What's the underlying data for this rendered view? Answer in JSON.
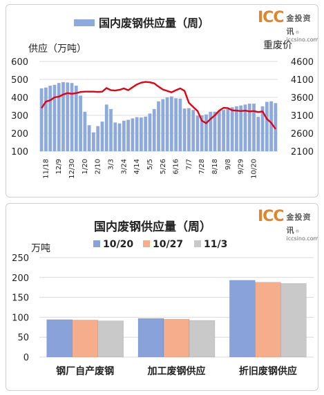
{
  "logo": {
    "mark": "ICC",
    "name_cn": "金投资讯",
    "domain": "iccsino.com",
    "reg": "®"
  },
  "colors": {
    "bar": "#8ea9db",
    "line": "#e60012",
    "grid": "#d9d9d9",
    "text": "#222222",
    "c1": "#8aa2da",
    "c2": "#f6ad8b",
    "c3": "#c9c9c9"
  },
  "chart_data": [
    {
      "type": "bar",
      "title": "",
      "legend": "国内废钢供应量（周）",
      "legend_position": "top",
      "ylabel": "供应（万吨）",
      "y2label": "重废价",
      "ylim": [
        100,
        600
      ],
      "y2lim": [
        2100,
        4600
      ],
      "yticks": [
        "100",
        "200",
        "300",
        "400",
        "500",
        "600"
      ],
      "y2ticks": [
        "2100",
        "2600",
        "3100",
        "3600",
        "4100",
        "4600"
      ],
      "xticks": [
        "11/18",
        "12/9",
        "12/30",
        "1/20",
        "2/10",
        "3/3",
        "3/24",
        "4/14",
        "5/5",
        "5/26",
        "6/16",
        "7/7",
        "7/28",
        "8/18",
        "9/8",
        "9/29",
        "10/20"
      ],
      "grid": true,
      "series": [
        {
          "name": "国内废钢供应量（周）",
          "kind": "bar",
          "axis": "left",
          "values": [
            450,
            455,
            465,
            470,
            480,
            485,
            483,
            480,
            465,
            410,
            320,
            245,
            205,
            240,
            265,
            360,
            335,
            260,
            255,
            270,
            275,
            283,
            290,
            288,
            293,
            310,
            335,
            378,
            390,
            400,
            405,
            395,
            393,
            338,
            340,
            330,
            298,
            300,
            305,
            320,
            320,
            325,
            330,
            335,
            345,
            350,
            355,
            360,
            365,
            365,
            292,
            350,
            375,
            378,
            368
          ]
        },
        {
          "name": "重废价",
          "kind": "line",
          "axis": "right",
          "values": [
            3300,
            3480,
            3520,
            3600,
            3620,
            3680,
            3720,
            3700,
            3720,
            3750,
            3760,
            3760,
            3760,
            3750,
            3760,
            3860,
            3800,
            3790,
            3810,
            3850,
            3800,
            3880,
            3960,
            4010,
            4030,
            4020,
            3990,
            3900,
            3820,
            3780,
            3740,
            3800,
            3850,
            3780,
            3450,
            3330,
            3220,
            2950,
            2880,
            3000,
            3100,
            3230,
            3310,
            3300,
            3240,
            3230,
            3220,
            3230,
            3210,
            3220,
            3190,
            3210,
            3000,
            2890,
            2720
          ]
        }
      ]
    },
    {
      "type": "bar",
      "title": "国内废钢供应量（周）",
      "ylabel": "万吨",
      "ylim": [
        0,
        250
      ],
      "yticks": [
        "0",
        "50",
        "100",
        "150",
        "200",
        "250"
      ],
      "grid": true,
      "legend_position": "top",
      "categories": [
        "钢厂自产废钢",
        "加工废钢供应",
        "折旧废钢供应"
      ],
      "series": [
        {
          "name": "10/20",
          "values": [
            94,
            97,
            193
          ]
        },
        {
          "name": "10/27",
          "values": [
            93,
            95,
            188
          ]
        },
        {
          "name": "11/3",
          "values": [
            91,
            92,
            185
          ]
        }
      ]
    }
  ]
}
